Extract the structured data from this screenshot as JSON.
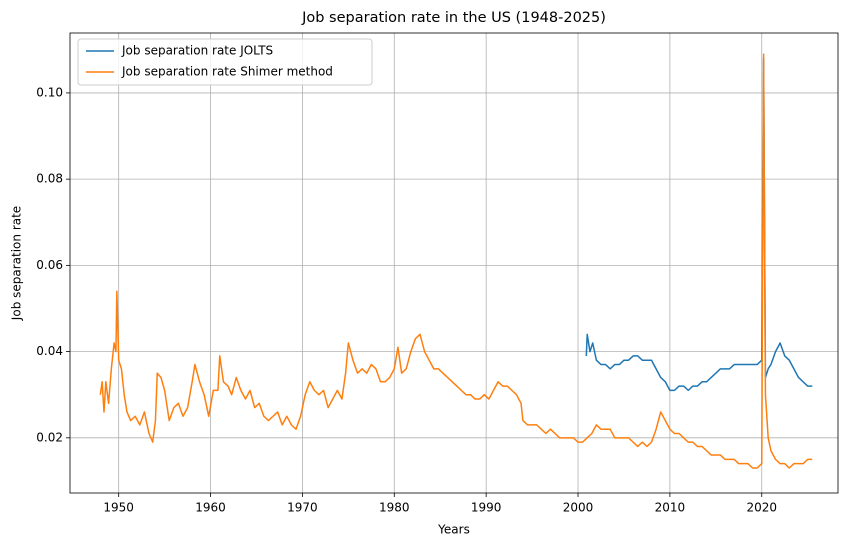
{
  "chart_data": {
    "type": "line",
    "title": "Job separation rate in the US (1948-2025)",
    "x_label": "Years",
    "y_label": "Job separation rate",
    "xlim": [
      1944.7,
      2028.3
    ],
    "ylim": [
      0.0072,
      0.1139
    ],
    "xticks": [
      1950,
      1960,
      1970,
      1980,
      1990,
      2000,
      2010,
      2020
    ],
    "yticks": [
      0.02,
      0.04,
      0.06,
      0.08,
      {
        "value": 0.1,
        "label": "0.10"
      }
    ],
    "grid": true,
    "legend": "upper left",
    "series": [
      {
        "name": "Job separation rate JOLTS",
        "color": "#1f77b4",
        "x": [
          2000.9,
          2001.0,
          2001.3,
          2001.6,
          2002.0,
          2002.5,
          2003.0,
          2003.5,
          2004.0,
          2004.5,
          2005.0,
          2005.5,
          2006.0,
          2006.5,
          2007.0,
          2007.5,
          2008.0,
          2008.5,
          2009.0,
          2009.5,
          2010.0,
          2010.5,
          2011.0,
          2011.5,
          2012.0,
          2012.5,
          2013.0,
          2013.5,
          2014.0,
          2014.5,
          2015.0,
          2015.5,
          2016.0,
          2016.5,
          2017.0,
          2017.5,
          2018.0,
          2018.5,
          2019.0,
          2019.5,
          2020.0,
          2020.2,
          2020.4,
          2020.7,
          2021.0,
          2021.5,
          2022.0,
          2022.5,
          2023.0,
          2023.5,
          2024.0,
          2024.5,
          2025.0,
          2025.5
        ],
        "values": [
          0.039,
          0.044,
          0.04,
          0.042,
          0.038,
          0.037,
          0.037,
          0.036,
          0.037,
          0.037,
          0.038,
          0.038,
          0.039,
          0.039,
          0.038,
          0.038,
          0.038,
          0.036,
          0.034,
          0.033,
          0.031,
          0.031,
          0.032,
          0.032,
          0.031,
          0.032,
          0.032,
          0.033,
          0.033,
          0.034,
          0.035,
          0.036,
          0.036,
          0.036,
          0.037,
          0.037,
          0.037,
          0.037,
          0.037,
          0.037,
          0.038,
          0.108,
          0.034,
          0.036,
          0.037,
          0.04,
          0.042,
          0.039,
          0.038,
          0.036,
          0.034,
          0.033,
          0.032,
          0.032
        ]
      },
      {
        "name": "Job separation rate Shimer method",
        "color": "#ff7f0e",
        "x": [
          1948.0,
          1948.2,
          1948.4,
          1948.6,
          1948.9,
          1949.2,
          1949.5,
          1949.7,
          1949.8,
          1950.0,
          1950.3,
          1950.6,
          1950.9,
          1951.3,
          1951.8,
          1952.3,
          1952.8,
          1953.3,
          1953.7,
          1954.0,
          1954.2,
          1954.6,
          1955.0,
          1955.5,
          1956.0,
          1956.5,
          1957.0,
          1957.5,
          1958.0,
          1958.3,
          1958.8,
          1959.3,
          1959.8,
          1960.3,
          1960.8,
          1961.0,
          1961.4,
          1961.9,
          1962.3,
          1962.8,
          1963.3,
          1963.8,
          1964.3,
          1964.8,
          1965.3,
          1965.8,
          1966.3,
          1966.8,
          1967.3,
          1967.8,
          1968.3,
          1968.8,
          1969.3,
          1969.8,
          1970.3,
          1970.8,
          1971.3,
          1971.8,
          1972.3,
          1972.8,
          1973.3,
          1973.8,
          1974.3,
          1974.7,
          1975.0,
          1975.5,
          1976.0,
          1976.5,
          1977.0,
          1977.5,
          1978.0,
          1978.5,
          1979.0,
          1979.5,
          1980.0,
          1980.4,
          1980.8,
          1981.3,
          1981.8,
          1982.3,
          1982.8,
          1983.3,
          1983.8,
          1984.3,
          1984.8,
          1985.3,
          1985.8,
          1986.3,
          1986.8,
          1987.3,
          1987.8,
          1988.3,
          1988.8,
          1989.3,
          1989.8,
          1990.3,
          1990.8,
          1991.3,
          1991.8,
          1992.3,
          1992.8,
          1993.3,
          1993.8,
          1994.0,
          1994.5,
          1995.0,
          1995.5,
          1996.0,
          1996.5,
          1997.0,
          1997.5,
          1998.0,
          1998.5,
          1999.0,
          1999.5,
          2000.0,
          2000.5,
          2001.0,
          2001.5,
          2002.0,
          2002.5,
          2003.0,
          2003.5,
          2004.0,
          2004.5,
          2005.0,
          2005.5,
          2006.0,
          2006.5,
          2007.0,
          2007.5,
          2008.0,
          2008.5,
          2009.0,
          2009.5,
          2010.0,
          2010.5,
          2011.0,
          2011.5,
          2012.0,
          2012.5,
          2013.0,
          2013.5,
          2014.0,
          2014.5,
          2015.0,
          2015.5,
          2016.0,
          2016.5,
          2017.0,
          2017.5,
          2018.0,
          2018.5,
          2019.0,
          2019.5,
          2020.0,
          2020.2,
          2020.4,
          2020.7,
          2021.0,
          2021.5,
          2022.0,
          2022.5,
          2023.0,
          2023.5,
          2024.0,
          2024.5,
          2025.0,
          2025.5
        ],
        "values": [
          0.03,
          0.033,
          0.026,
          0.033,
          0.028,
          0.036,
          0.042,
          0.04,
          0.054,
          0.038,
          0.036,
          0.03,
          0.026,
          0.024,
          0.025,
          0.023,
          0.026,
          0.021,
          0.019,
          0.024,
          0.035,
          0.034,
          0.031,
          0.024,
          0.027,
          0.028,
          0.025,
          0.027,
          0.033,
          0.037,
          0.033,
          0.03,
          0.025,
          0.031,
          0.031,
          0.039,
          0.033,
          0.032,
          0.03,
          0.034,
          0.031,
          0.029,
          0.031,
          0.027,
          0.028,
          0.025,
          0.024,
          0.025,
          0.026,
          0.023,
          0.025,
          0.023,
          0.022,
          0.025,
          0.03,
          0.033,
          0.031,
          0.03,
          0.031,
          0.027,
          0.029,
          0.031,
          0.029,
          0.035,
          0.042,
          0.038,
          0.035,
          0.036,
          0.035,
          0.037,
          0.036,
          0.033,
          0.033,
          0.034,
          0.036,
          0.041,
          0.035,
          0.036,
          0.04,
          0.043,
          0.044,
          0.04,
          0.038,
          0.036,
          0.036,
          0.035,
          0.034,
          0.033,
          0.032,
          0.031,
          0.03,
          0.03,
          0.029,
          0.029,
          0.03,
          0.029,
          0.031,
          0.033,
          0.032,
          0.032,
          0.031,
          0.03,
          0.028,
          0.024,
          0.023,
          0.023,
          0.023,
          0.022,
          0.021,
          0.022,
          0.021,
          0.02,
          0.02,
          0.02,
          0.02,
          0.019,
          0.019,
          0.02,
          0.021,
          0.023,
          0.022,
          0.022,
          0.022,
          0.02,
          0.02,
          0.02,
          0.02,
          0.019,
          0.018,
          0.019,
          0.018,
          0.019,
          0.022,
          0.026,
          0.024,
          0.022,
          0.021,
          0.021,
          0.02,
          0.019,
          0.019,
          0.018,
          0.018,
          0.017,
          0.016,
          0.016,
          0.016,
          0.015,
          0.015,
          0.015,
          0.014,
          0.014,
          0.014,
          0.013,
          0.013,
          0.014,
          0.109,
          0.03,
          0.02,
          0.017,
          0.015,
          0.014,
          0.014,
          0.013,
          0.014,
          0.014,
          0.014,
          0.015,
          0.015
        ]
      }
    ]
  }
}
